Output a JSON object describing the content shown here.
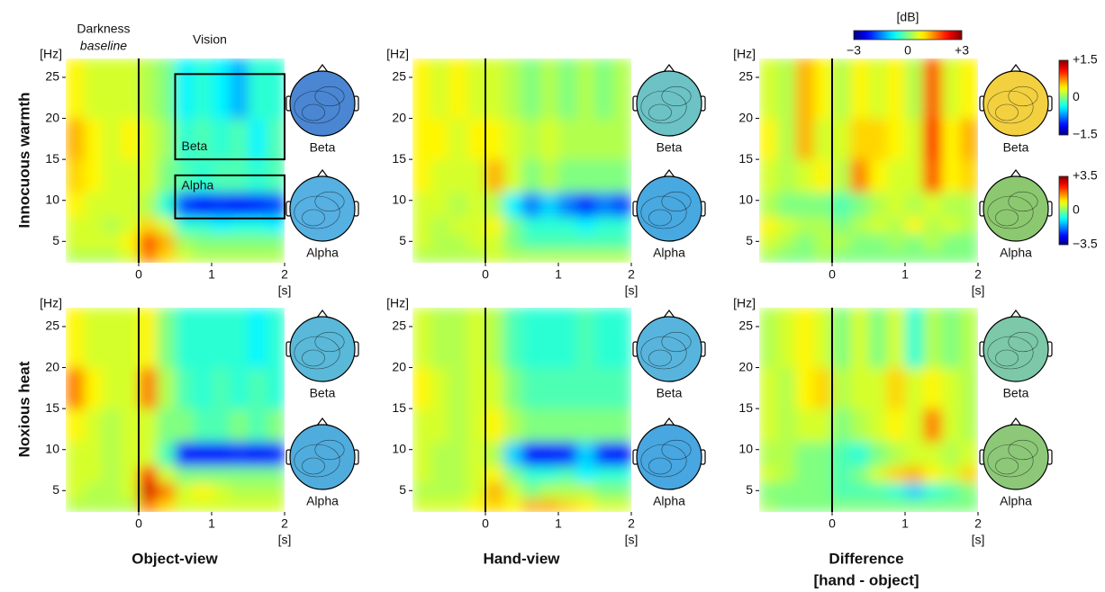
{
  "annotations": {
    "darkness": "Darkness",
    "baseline": "baseline",
    "vision": "Vision"
  },
  "row_labels": [
    "Innocuous warmth",
    "Noxious heat"
  ],
  "column_labels": [
    [
      "Object-view"
    ],
    [
      "Hand-view"
    ],
    [
      "Difference",
      "[hand - object]"
    ]
  ],
  "colorbar": {
    "label": "[dB]",
    "lim": [
      -3,
      3
    ],
    "ticks": [
      {
        "value": -3,
        "label": "−3"
      },
      0,
      {
        "value": 3,
        "label": "+3"
      }
    ]
  },
  "topo_colorbars": [
    {
      "lim": [
        -1.5,
        1.5
      ],
      "ticks": [
        {
          "value": 1.5,
          "label": "+1.5"
        },
        0,
        {
          "value": -1.5,
          "label": "−1.5"
        }
      ]
    },
    {
      "lim": [
        -3.5,
        3.5
      ],
      "ticks": [
        {
          "value": 3.5,
          "label": "+3.5"
        },
        0,
        {
          "value": -3.5,
          "label": "−3.5"
        }
      ]
    }
  ],
  "chart_data": [
    {
      "type": "heatmap",
      "xlabel": "[s]",
      "ylabel": "[Hz]",
      "xlim": [
        -1,
        2
      ],
      "ylim": [
        2.4,
        27.3
      ],
      "xticks": [
        0,
        1,
        2
      ],
      "yticks": [
        5,
        10,
        15,
        20,
        25
      ],
      "event_line": 0,
      "x_bins": [
        -1,
        -0.75,
        -0.5,
        -0.25,
        0,
        0.25,
        0.5,
        0.75,
        1,
        1.25,
        1.5,
        1.75,
        2
      ],
      "y_bins": [
        2.4,
        4,
        6,
        8,
        11,
        15,
        20,
        27.3
      ],
      "z": [
        [
          0.3,
          0.3,
          0.3,
          0.5,
          1.5,
          1.0,
          0.5,
          0.3,
          0.3,
          0.3,
          0.3,
          0.3
        ],
        [
          0.5,
          0.5,
          0.5,
          0.8,
          1.8,
          1.2,
          0.2,
          0,
          0,
          0,
          0,
          0
        ],
        [
          0.5,
          0.5,
          0.3,
          0.5,
          1.0,
          0.5,
          -0.5,
          -0.5,
          -0.8,
          -0.6,
          -0.6,
          -0.8
        ],
        [
          0.8,
          0.5,
          0.5,
          0.5,
          0.3,
          -0.5,
          -1.8,
          -2.2,
          -2.0,
          -2.2,
          -2.0,
          -1.8
        ],
        [
          1.0,
          0.8,
          0.5,
          0.5,
          0.5,
          0,
          -0.3,
          -0.5,
          -0.3,
          -0.3,
          -0.5,
          -0.3
        ],
        [
          1.2,
          0.8,
          0.5,
          0.8,
          0.5,
          0.2,
          -0.5,
          -0.3,
          -0.5,
          -0.3,
          -0.8,
          -0.3
        ],
        [
          0.8,
          0.5,
          0.5,
          0.5,
          0.3,
          0,
          -0.8,
          -0.5,
          -0.8,
          -1.2,
          -0.5,
          -0.5
        ]
      ],
      "boxes": [
        {
          "label": "Beta",
          "x": [
            0.5,
            2
          ],
          "y": [
            15,
            25.4
          ]
        },
        {
          "label": "Alpha",
          "x": [
            0.5,
            2
          ],
          "y": [
            7.8,
            13.05
          ]
        }
      ],
      "topoplots": [
        {
          "label": "Beta",
          "color": "#4a86d2"
        },
        {
          "label": "Alpha",
          "color": "#56b0e2"
        }
      ]
    },
    {
      "type": "heatmap",
      "xlabel": "[s]",
      "ylabel": "[Hz]",
      "xlim": [
        -1,
        2
      ],
      "ylim": [
        2.4,
        27.3
      ],
      "xticks": [
        0,
        1,
        2
      ],
      "yticks": [
        5,
        10,
        15,
        20,
        25
      ],
      "event_line": 0,
      "x_bins": [
        -1,
        -0.75,
        -0.5,
        -0.25,
        0,
        0.25,
        0.5,
        0.75,
        1,
        1.25,
        1.5,
        1.75,
        2
      ],
      "y_bins": [
        2.4,
        4,
        6,
        8,
        11,
        15,
        20,
        27.3
      ],
      "z": [
        [
          0.3,
          0.3,
          0.3,
          0.3,
          0.5,
          0.3,
          0.3,
          0.3,
          0.3,
          0.3,
          0.3,
          0.3
        ],
        [
          0.5,
          0.3,
          0.3,
          0.5,
          0.5,
          0,
          -0.3,
          -0.3,
          -0.3,
          -0.3,
          -0.3,
          -0.3
        ],
        [
          0.5,
          0.3,
          0.5,
          0.5,
          0.8,
          0,
          -0.5,
          -0.5,
          -0.5,
          -0.8,
          -0.5,
          -0.5
        ],
        [
          0.5,
          0.5,
          0.3,
          0.5,
          0.3,
          -0.8,
          -1.5,
          -1.0,
          -1.5,
          -2.0,
          -1.5,
          -1.8
        ],
        [
          0.8,
          0.5,
          0.5,
          0.5,
          1.2,
          0.5,
          0,
          0.3,
          0,
          0,
          0,
          0
        ],
        [
          0.8,
          0.8,
          0.5,
          0.8,
          0.8,
          0.5,
          0.3,
          0.5,
          0.3,
          0.3,
          0.3,
          0.3
        ],
        [
          0.8,
          0.5,
          0.8,
          0.5,
          0.5,
          0.3,
          0,
          0.3,
          0,
          0.3,
          0,
          0.3
        ]
      ],
      "topoplots": [
        {
          "label": "Beta",
          "color": "#6cc2c4"
        },
        {
          "label": "Alpha",
          "color": "#48a8e0"
        }
      ]
    },
    {
      "type": "heatmap",
      "xlabel": "[s]",
      "ylabel": "[Hz]",
      "xlim": [
        -1,
        2
      ],
      "ylim": [
        2.4,
        27.3
      ],
      "xticks": [
        0,
        1,
        2
      ],
      "yticks": [
        5,
        10,
        15,
        20,
        25
      ],
      "event_line": 0,
      "x_bins": [
        -1,
        -0.75,
        -0.5,
        -0.25,
        0,
        0.25,
        0.5,
        0.75,
        1,
        1.25,
        1.5,
        1.75,
        2
      ],
      "y_bins": [
        2.4,
        4,
        6,
        8,
        11,
        15,
        20,
        27.3
      ],
      "z": [
        [
          0.2,
          0,
          0,
          0.2,
          0,
          0,
          0,
          0,
          0,
          0,
          0,
          0
        ],
        [
          0.5,
          0.3,
          0,
          0.3,
          0.3,
          0,
          0,
          0.2,
          0,
          0.3,
          0,
          0
        ],
        [
          0.8,
          0.5,
          0.3,
          0.3,
          0,
          0.3,
          0.5,
          0.3,
          0.8,
          0.3,
          0.5,
          0.3
        ],
        [
          0.3,
          0,
          0,
          0,
          -0.3,
          0,
          0.3,
          0.5,
          0.3,
          0.5,
          0.3,
          0.3
        ],
        [
          0.5,
          0.3,
          0.5,
          0.8,
          0.3,
          1.5,
          0.8,
          0.5,
          0.5,
          1.8,
          0.8,
          1.0
        ],
        [
          0.8,
          0.3,
          1.2,
          0.5,
          0.5,
          1.0,
          1.0,
          0.8,
          0.5,
          2.2,
          0.8,
          1.2
        ],
        [
          0.5,
          0.3,
          1.2,
          0.8,
          0.3,
          0.8,
          0.5,
          0.8,
          0.3,
          1.8,
          0.5,
          0.8
        ]
      ],
      "topoplots": [
        {
          "label": "Beta",
          "color": "#f2d040"
        },
        {
          "label": "Alpha",
          "color": "#8cc870"
        }
      ]
    },
    {
      "type": "heatmap",
      "xlabel": "[s]",
      "ylabel": "[Hz]",
      "xlim": [
        -1,
        2
      ],
      "ylim": [
        2.4,
        27.3
      ],
      "xticks": [
        0,
        1,
        2
      ],
      "yticks": [
        5,
        10,
        15,
        20,
        25
      ],
      "event_line": 0,
      "x_bins": [
        -1,
        -0.75,
        -0.5,
        -0.25,
        0,
        0.25,
        0.5,
        0.75,
        1,
        1.25,
        1.5,
        1.75,
        2
      ],
      "y_bins": [
        2.4,
        4,
        6,
        8,
        11,
        15,
        20,
        27.3
      ],
      "z": [
        [
          0.3,
          0.3,
          0.3,
          0.3,
          1.5,
          1.0,
          0.5,
          0.5,
          0.5,
          0.5,
          0.5,
          0.5
        ],
        [
          0.5,
          0.3,
          0.3,
          0.5,
          2.5,
          1.5,
          0.5,
          0.8,
          0.5,
          0.3,
          0.3,
          0.3
        ],
        [
          0.5,
          0.5,
          0.3,
          0.5,
          2.0,
          0.5,
          0,
          0,
          0,
          0,
          0,
          0
        ],
        [
          0.5,
          0.5,
          0.3,
          0.5,
          0.5,
          -0.3,
          -2.2,
          -2.2,
          -2.2,
          -2.0,
          -2.2,
          -2.0
        ],
        [
          0.8,
          0.5,
          0.3,
          0.5,
          0.5,
          0,
          0,
          -0.3,
          -0.3,
          0,
          -0.3,
          0
        ],
        [
          1.5,
          0.8,
          0.5,
          0.5,
          1.5,
          0.3,
          -0.3,
          -0.5,
          -0.3,
          -0.5,
          -0.3,
          -0.5
        ],
        [
          0.8,
          0.5,
          0.5,
          0.5,
          0.8,
          0,
          -0.5,
          -0.5,
          -0.5,
          -0.5,
          -0.8,
          -0.5
        ]
      ],
      "topoplots": [
        {
          "label": "Beta",
          "color": "#5ab8d8"
        },
        {
          "label": "Alpha",
          "color": "#50acdc"
        }
      ]
    },
    {
      "type": "heatmap",
      "xlabel": "[s]",
      "ylabel": "[Hz]",
      "xlim": [
        -1,
        2
      ],
      "ylim": [
        2.4,
        27.3
      ],
      "xticks": [
        0,
        1,
        2
      ],
      "yticks": [
        5,
        10,
        15,
        20,
        25
      ],
      "event_line": 0,
      "x_bins": [
        -1,
        -0.75,
        -0.5,
        -0.25,
        0,
        0.25,
        0.5,
        0.75,
        1,
        1.25,
        1.5,
        1.75,
        2
      ],
      "y_bins": [
        2.4,
        4,
        6,
        8,
        11,
        15,
        20,
        27.3
      ],
      "z": [
        [
          0.5,
          0.5,
          0.5,
          0.8,
          1.0,
          0.8,
          1.2,
          1.2,
          1.0,
          0.8,
          0.5,
          0.5
        ],
        [
          0.3,
          0.3,
          0.3,
          0.5,
          1.2,
          0.5,
          0,
          0.3,
          0.3,
          0.3,
          0,
          0
        ],
        [
          0.5,
          0.3,
          0.3,
          0.5,
          0.8,
          0,
          -0.5,
          -0.5,
          -0.3,
          -0.8,
          -0.5,
          -0.5
        ],
        [
          0.5,
          0.3,
          0.3,
          0.5,
          0.3,
          -1.0,
          -2.2,
          -2.2,
          -2.0,
          -1.0,
          -2.0,
          -2.2
        ],
        [
          0.5,
          0.5,
          0.3,
          0.5,
          0.8,
          0.3,
          0,
          0,
          0,
          0,
          0,
          0
        ],
        [
          0.8,
          0.5,
          0.3,
          0.5,
          0.5,
          0,
          -0.3,
          -0.3,
          -0.3,
          -0.3,
          -0.3,
          -0.3
        ],
        [
          0.5,
          0.3,
          0.3,
          0.5,
          0.3,
          -0.3,
          -0.5,
          -0.5,
          -0.5,
          -0.3,
          -0.5,
          -0.5
        ]
      ],
      "topoplots": [
        {
          "label": "Beta",
          "color": "#58b4dc"
        },
        {
          "label": "Alpha",
          "color": "#48a6e0"
        }
      ]
    },
    {
      "type": "heatmap",
      "xlabel": "[s]",
      "ylabel": "[Hz]",
      "xlim": [
        -1,
        2
      ],
      "ylim": [
        2.4,
        27.3
      ],
      "xticks": [
        0,
        1,
        2
      ],
      "yticks": [
        5,
        10,
        15,
        20,
        25
      ],
      "event_line": 0,
      "x_bins": [
        -1,
        -0.75,
        -0.5,
        -0.25,
        0,
        0.25,
        0.5,
        0.75,
        1,
        1.25,
        1.5,
        1.75,
        2
      ],
      "y_bins": [
        2.4,
        4,
        6,
        8,
        11,
        15,
        20,
        27.3
      ],
      "z": [
        [
          0.2,
          0,
          0,
          0,
          0,
          0,
          0,
          0,
          0,
          0,
          0,
          0
        ],
        [
          0,
          0,
          0,
          0,
          -0.3,
          -0.3,
          -0.3,
          -0.5,
          -1.0,
          -0.5,
          -0.3,
          0
        ],
        [
          0.5,
          0.3,
          0,
          0,
          -0.3,
          0,
          0.5,
          1.0,
          1.2,
          0.8,
          0.5,
          1.0
        ],
        [
          0.3,
          0.3,
          0,
          0,
          -0.3,
          -0.5,
          0,
          0.3,
          0.5,
          0.5,
          0.3,
          0.5
        ],
        [
          0.5,
          0.3,
          0.5,
          0.5,
          0,
          0.3,
          0.5,
          0.8,
          0.5,
          1.5,
          0.5,
          0.3
        ],
        [
          0.5,
          0.3,
          0.8,
          1.0,
          0.3,
          0.5,
          0.5,
          1.0,
          0.5,
          0.8,
          0.5,
          0.3
        ],
        [
          0.3,
          0.5,
          0.8,
          0.5,
          0,
          0.5,
          0,
          0.5,
          -0.5,
          0.3,
          0,
          0.3
        ]
      ],
      "topoplots": [
        {
          "label": "Beta",
          "color": "#7cc8a8"
        },
        {
          "label": "Alpha",
          "color": "#8cc878"
        }
      ]
    }
  ]
}
